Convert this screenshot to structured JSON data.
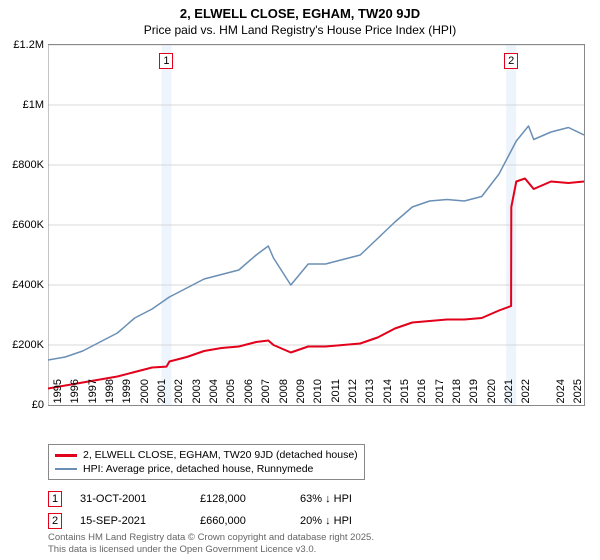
{
  "title": "2, ELWELL CLOSE, EGHAM, TW20 9JD",
  "subtitle": "Price paid vs. HM Land Registry's House Price Index (HPI)",
  "chart": {
    "type": "line",
    "background_color": "#ffffff",
    "grid_color": "#d8d8d8",
    "axis_color": "#888888",
    "band_color": "rgba(230,240,250,0.7)",
    "ylim": [
      0,
      1200000
    ],
    "ytick_step": 200000,
    "yticks": [
      "£0",
      "£200K",
      "£400K",
      "£600K",
      "£800K",
      "£1M",
      "£1.2M"
    ],
    "xlim": [
      1995,
      2025.9
    ],
    "xticks": [
      "1995",
      "1996",
      "1997",
      "1998",
      "1999",
      "2000",
      "2001",
      "2002",
      "2003",
      "2004",
      "2005",
      "2006",
      "2007",
      "2008",
      "2009",
      "2010",
      "2011",
      "2012",
      "2013",
      "2014",
      "2015",
      "2016",
      "2017",
      "2018",
      "2019",
      "2020",
      "2021",
      "2022",
      "2024",
      "2025"
    ],
    "title_fontsize": 13,
    "label_fontsize": 11,
    "line_width_red": 2,
    "line_width_blue": 1.5,
    "series": {
      "red": {
        "color": "#e2001a",
        "label": "2, ELWELL CLOSE, EGHAM, TW20 9JD (detached house)",
        "x": [
          1995,
          1996,
          1997,
          1998,
          1999,
          2000,
          2001,
          2001.83,
          2002,
          2003,
          2004,
          2005,
          2006,
          2007,
          2007.7,
          2008,
          2009,
          2010,
          2011,
          2012,
          2013,
          2014,
          2015,
          2016,
          2017,
          2018,
          2019,
          2020,
          2021,
          2021.7,
          2021.71,
          2022,
          2022.5,
          2023,
          2024,
          2025,
          2025.9
        ],
        "y": [
          55000,
          65000,
          75000,
          85000,
          95000,
          110000,
          125000,
          128000,
          145000,
          160000,
          180000,
          190000,
          195000,
          210000,
          215000,
          200000,
          175000,
          195000,
          195000,
          200000,
          205000,
          225000,
          255000,
          275000,
          280000,
          285000,
          285000,
          290000,
          315000,
          330000,
          660000,
          745000,
          755000,
          720000,
          745000,
          740000,
          745000
        ]
      },
      "blue": {
        "color": "#6a8fb5",
        "label": "HPI: Average price, detached house, Runnymede",
        "x": [
          1995,
          1996,
          1997,
          1998,
          1999,
          2000,
          2001,
          2002,
          2003,
          2004,
          2005,
          2006,
          2007,
          2007.7,
          2008,
          2009,
          2010,
          2011,
          2012,
          2013,
          2014,
          2015,
          2016,
          2017,
          2018,
          2019,
          2020,
          2021,
          2022,
          2022.7,
          2023,
          2024,
          2025,
          2025.9
        ],
        "y": [
          150000,
          160000,
          180000,
          210000,
          240000,
          290000,
          320000,
          360000,
          390000,
          420000,
          435000,
          450000,
          500000,
          530000,
          490000,
          400000,
          470000,
          470000,
          485000,
          500000,
          555000,
          610000,
          660000,
          680000,
          685000,
          680000,
          695000,
          770000,
          880000,
          930000,
          885000,
          910000,
          925000,
          900000
        ]
      }
    },
    "markers": [
      {
        "num": "1",
        "x": 2001.83,
        "color": "#e2001a",
        "band_width": 10
      },
      {
        "num": "2",
        "x": 2021.7,
        "color": "#e2001a",
        "band_width": 10
      }
    ]
  },
  "legend": {
    "items": [
      {
        "color": "#e2001a",
        "height": 3,
        "text": "2, ELWELL CLOSE, EGHAM, TW20 9JD (detached house)"
      },
      {
        "color": "#6a8fb5",
        "height": 2,
        "text": "HPI: Average price, detached house, Runnymede"
      }
    ]
  },
  "sales": [
    {
      "num": "1",
      "color": "#e2001a",
      "date": "31-OCT-2001",
      "price": "£128,000",
      "pct": "63% ↓ HPI"
    },
    {
      "num": "2",
      "color": "#e2001a",
      "date": "15-SEP-2021",
      "price": "£660,000",
      "pct": "20% ↓ HPI"
    }
  ],
  "footer": {
    "line1": "Contains HM Land Registry data © Crown copyright and database right 2025.",
    "line2": "This data is licensed under the Open Government Licence v3.0."
  }
}
